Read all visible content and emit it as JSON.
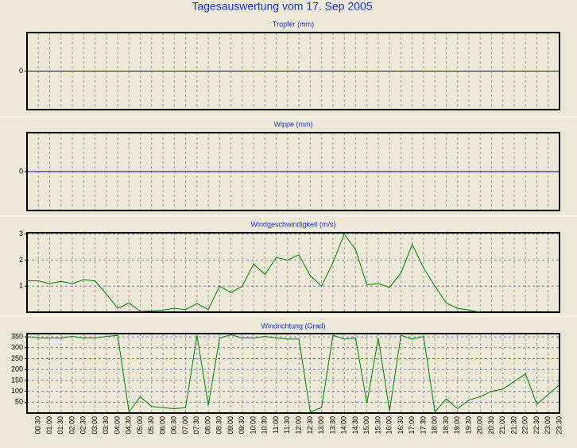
{
  "title": "Tagesauswertung vom 17. Sep 2005",
  "chart_data": [
    {
      "type": "line",
      "title": "Tropfer (mm)",
      "ylim": [
        -1,
        1
      ],
      "yticks": [
        0
      ],
      "color": "#0000a0",
      "values": [
        0,
        0,
        0,
        0,
        0,
        0,
        0,
        0,
        0,
        0,
        0,
        0,
        0,
        0,
        0,
        0,
        0,
        0,
        0,
        0,
        0,
        0,
        0,
        0,
        0,
        0,
        0,
        0,
        0,
        0,
        0,
        0,
        0,
        0,
        0,
        0,
        0,
        0,
        0,
        0,
        0,
        0,
        0,
        0,
        0,
        0,
        0,
        0
      ]
    },
    {
      "type": "line",
      "title": "Wippe (mm)",
      "ylim": [
        -1,
        1
      ],
      "yticks": [
        0
      ],
      "color": "#0000a0",
      "values": [
        0,
        0,
        0,
        0,
        0,
        0,
        0,
        0,
        0,
        0,
        0,
        0,
        0,
        0,
        0,
        0,
        0,
        0,
        0,
        0,
        0,
        0,
        0,
        0,
        0,
        0,
        0,
        0,
        0,
        0,
        0,
        0,
        0,
        0,
        0,
        0,
        0,
        0,
        0,
        0,
        0,
        0,
        0,
        0,
        0,
        0,
        0,
        0
      ]
    },
    {
      "type": "line",
      "title": "Windgeschwindigkeit (m/s)",
      "ylim": [
        0,
        3.05
      ],
      "yticks": [
        1,
        2,
        3
      ],
      "grid": true,
      "color": "#008000",
      "values": [
        1.2,
        1.2,
        1.1,
        1.18,
        1.1,
        1.25,
        1.2,
        0.7,
        0.15,
        0.35,
        0.03,
        0.05,
        0.08,
        0.15,
        0.1,
        0.33,
        0.1,
        1.0,
        0.75,
        1.0,
        1.85,
        1.45,
        2.1,
        2.0,
        2.2,
        1.4,
        1.0,
        1.9,
        3.0,
        2.4,
        1.05,
        1.1,
        0.95,
        1.5,
        2.6,
        1.7,
        1.0,
        0.35,
        0.15,
        0.08,
        0,
        null,
        null,
        null,
        null,
        null,
        null,
        null
      ]
    },
    {
      "type": "line",
      "title": "Windrichtung (Grad)",
      "ylim": [
        0,
        365
      ],
      "yticks": [
        50,
        100,
        150,
        200,
        250,
        300,
        350
      ],
      "grid": true,
      "color": "#008000",
      "categories": [
        null,
        "00:30",
        "01:00",
        "01:30",
        "02:00",
        "02:30",
        "03:00",
        "03:30",
        "04:00",
        "04:30",
        "05:00",
        "05:30",
        "06:00",
        "06:30",
        "07:00",
        "07:30",
        "08:00",
        "08:30",
        "09:00",
        "09:30",
        "10:00",
        "10:30",
        "11:00",
        "11:30",
        "12:00",
        "12:30",
        "13:00",
        "13:30",
        "14:00",
        "14:30",
        "15:00",
        "15:30",
        "16:00",
        "16:30",
        "17:00",
        "17:30",
        "18:00",
        "18:30",
        "19:00",
        "19:30",
        "20:00",
        "20:30",
        "21:00",
        "21:30",
        "22:00",
        "22:30",
        "23:00",
        "23:30"
      ],
      "values": [
        352,
        345,
        345,
        345,
        352,
        345,
        345,
        352,
        357,
        5,
        75,
        30,
        25,
        20,
        25,
        357,
        35,
        345,
        360,
        345,
        345,
        352,
        345,
        340,
        340,
        5,
        25,
        357,
        340,
        345,
        45,
        345,
        10,
        357,
        340,
        352,
        5,
        65,
        20,
        60,
        75,
        100,
        110,
        145,
        180,
        40,
        85,
        130
      ]
    }
  ]
}
